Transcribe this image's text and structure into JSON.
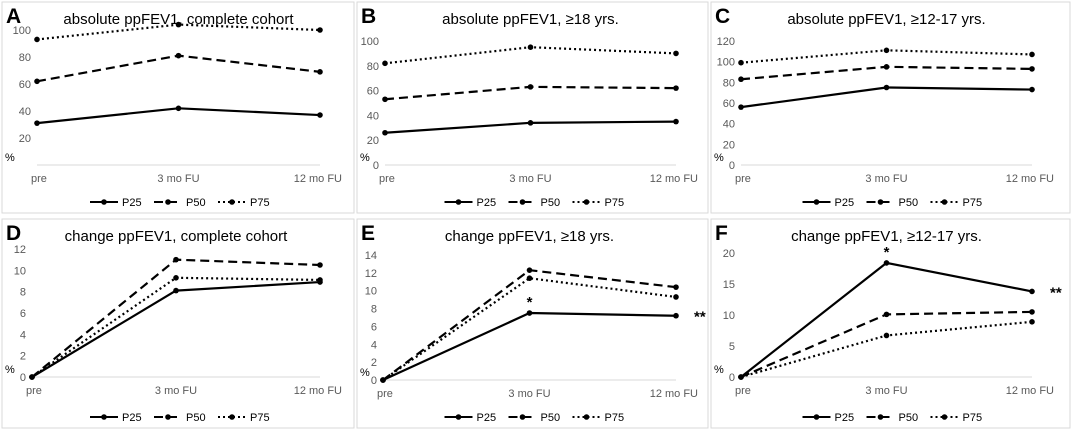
{
  "chart_data": [
    {
      "panel": "A",
      "type": "line",
      "title": "absolute ppFEV1, complete cohort",
      "categories": [
        "pre",
        "3 mo FU",
        "12 mo FU"
      ],
      "ylabel": "%",
      "ylim": [
        0,
        100
      ],
      "yticks": [
        20,
        40,
        60,
        80,
        100
      ],
      "series": [
        {
          "name": "P25",
          "values": [
            31,
            42,
            37
          ]
        },
        {
          "name": "P50",
          "values": [
            62,
            81,
            69
          ]
        },
        {
          "name": "P75",
          "values": [
            93,
            104,
            100
          ]
        }
      ],
      "annotations": []
    },
    {
      "panel": "B",
      "type": "line",
      "title": "absolute ppFEV1, ≥18 yrs.",
      "categories": [
        "pre",
        "3 mo FU",
        "12 mo FU"
      ],
      "ylabel": "%",
      "ylim": [
        0,
        100
      ],
      "yticks": [
        0,
        20,
        40,
        60,
        80,
        100
      ],
      "series": [
        {
          "name": "P25",
          "values": [
            26,
            34,
            35
          ]
        },
        {
          "name": "P50",
          "values": [
            53,
            63,
            62
          ]
        },
        {
          "name": "P75",
          "values": [
            82,
            95,
            90
          ]
        }
      ],
      "annotations": []
    },
    {
      "panel": "C",
      "type": "line",
      "title": "absolute ppFEV1, ≥12-17 yrs.",
      "categories": [
        "pre",
        "3 mo FU",
        "12 mo FU"
      ],
      "ylabel": "%",
      "ylim": [
        0,
        120
      ],
      "yticks": [
        0,
        20,
        40,
        60,
        80,
        100,
        120
      ],
      "series": [
        {
          "name": "P25",
          "values": [
            56,
            75,
            73
          ]
        },
        {
          "name": "P50",
          "values": [
            83,
            95,
            93
          ]
        },
        {
          "name": "P75",
          "values": [
            99,
            111,
            107
          ]
        }
      ],
      "annotations": []
    },
    {
      "panel": "D",
      "type": "line",
      "title": "change ppFEV1, complete cohort",
      "categories": [
        "pre",
        "3 mo FU",
        "12 mo FU"
      ],
      "ylabel": "%",
      "ylim": [
        0,
        12
      ],
      "yticks": [
        0,
        2,
        4,
        6,
        8,
        10,
        12
      ],
      "series": [
        {
          "name": "P25",
          "values": [
            0,
            8.1,
            8.9
          ]
        },
        {
          "name": "P50",
          "values": [
            0,
            11.0,
            10.5
          ]
        },
        {
          "name": "P75",
          "values": [
            0,
            9.3,
            9.1
          ]
        }
      ],
      "annotations": []
    },
    {
      "panel": "E",
      "type": "line",
      "title": "change ppFEV1, ≥18 yrs.",
      "categories": [
        "pre",
        "3 mo FU",
        "12 mo FU"
      ],
      "ylabel": "%",
      "ylim": [
        0,
        14
      ],
      "yticks": [
        0,
        2,
        4,
        6,
        8,
        10,
        12,
        14
      ],
      "series": [
        {
          "name": "P25",
          "values": [
            0,
            7.5,
            7.2
          ]
        },
        {
          "name": "P50",
          "values": [
            0,
            12.3,
            10.4
          ]
        },
        {
          "name": "P75",
          "values": [
            0,
            11.4,
            9.3
          ]
        }
      ],
      "annotations": [
        {
          "text": "*",
          "series": "P25",
          "index": 1,
          "where": "above"
        },
        {
          "text": "**",
          "series": "P25",
          "index": 2,
          "where": "right"
        }
      ]
    },
    {
      "panel": "F",
      "type": "line",
      "title": "change ppFEV1, ≥12-17 yrs.",
      "categories": [
        "pre",
        "3 mo FU",
        "12 mo FU"
      ],
      "ylabel": "%",
      "ylim": [
        0,
        20
      ],
      "yticks": [
        0,
        5,
        10,
        15,
        20
      ],
      "series": [
        {
          "name": "P25",
          "values": [
            0,
            18.4,
            13.8
          ]
        },
        {
          "name": "P50",
          "values": [
            0,
            10.1,
            10.5
          ]
        },
        {
          "name": "P75",
          "values": [
            0,
            6.7,
            8.9
          ]
        }
      ],
      "annotations": [
        {
          "text": "*",
          "series": "P25",
          "index": 1,
          "where": "above"
        },
        {
          "text": "**",
          "series": "P25",
          "index": 2,
          "where": "right"
        }
      ]
    }
  ]
}
